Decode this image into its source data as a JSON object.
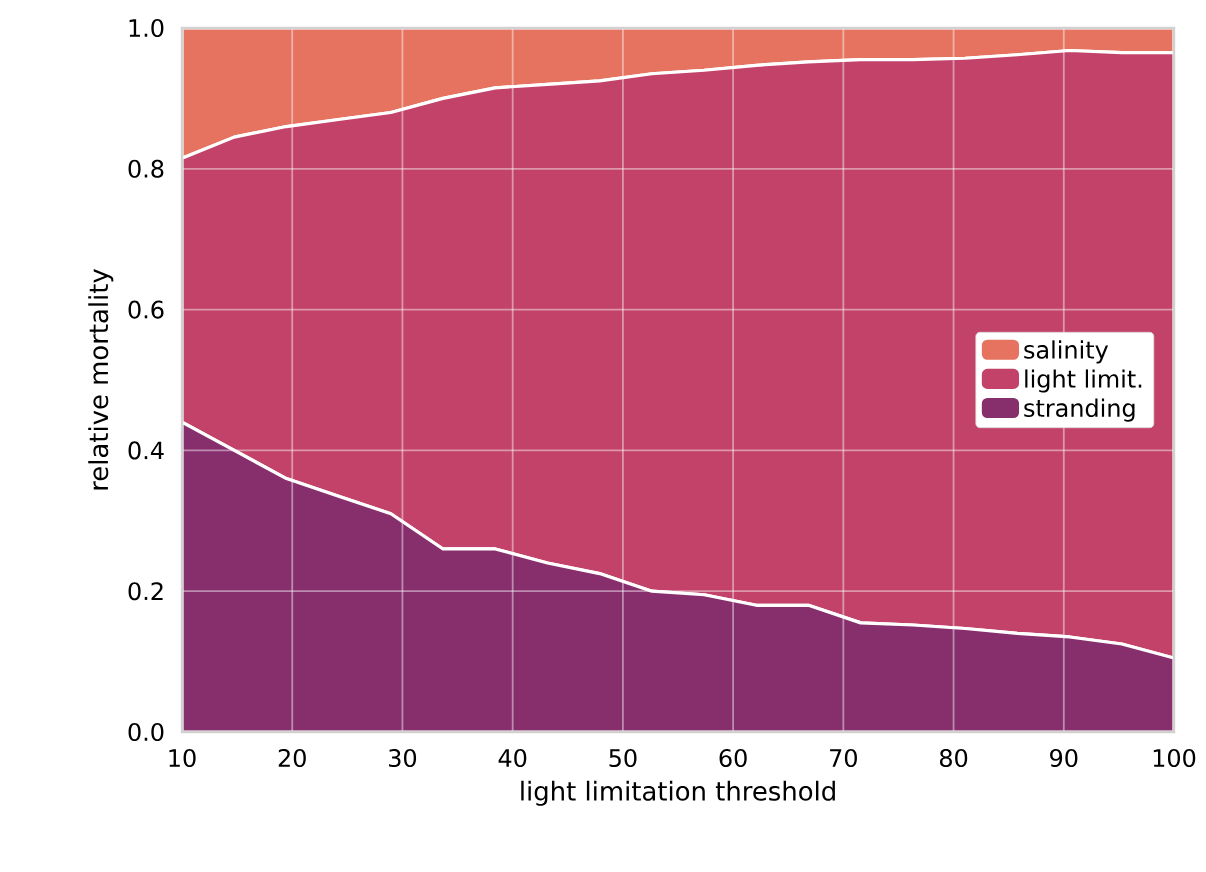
{
  "chart_data": {
    "type": "area",
    "stacked": true,
    "xlabel": "light limitation threshold",
    "ylabel": "relative mortality",
    "x": [
      10,
      14.74,
      19.47,
      24.21,
      28.95,
      33.68,
      38.42,
      43.16,
      47.89,
      52.63,
      57.37,
      62.11,
      66.84,
      71.58,
      76.32,
      81.05,
      85.79,
      90.53,
      95.26,
      100
    ],
    "series": [
      {
        "name": "stranding",
        "color": "#872e6d",
        "values": [
          0.44,
          0.4,
          0.36,
          0.335,
          0.31,
          0.26,
          0.26,
          0.24,
          0.225,
          0.2,
          0.195,
          0.18,
          0.18,
          0.155,
          0.152,
          0.147,
          0.14,
          0.135,
          0.125,
          0.105
        ]
      },
      {
        "name": "light limit.",
        "color": "#c2426a",
        "values": [
          0.375,
          0.445,
          0.5,
          0.535,
          0.57,
          0.64,
          0.655,
          0.68,
          0.7,
          0.735,
          0.745,
          0.767,
          0.772,
          0.8,
          0.803,
          0.81,
          0.822,
          0.833,
          0.84,
          0.86
        ]
      },
      {
        "name": "salinity",
        "color": "#e6735f",
        "values": [
          0.185,
          0.155,
          0.14,
          0.13,
          0.12,
          0.1,
          0.085,
          0.08,
          0.075,
          0.065,
          0.06,
          0.053,
          0.048,
          0.045,
          0.045,
          0.043,
          0.038,
          0.032,
          0.035,
          0.035
        ]
      }
    ],
    "xlim": [
      10,
      100
    ],
    "ylim": [
      0,
      1
    ],
    "xticks": [
      10,
      20,
      30,
      40,
      50,
      60,
      70,
      80,
      90,
      100
    ],
    "yticks": [
      {
        "value": 0,
        "label": "0.0"
      },
      {
        "value": 0.2,
        "label": "0.2"
      },
      {
        "value": 0.4,
        "label": "0.4"
      },
      {
        "value": 0.6,
        "label": "0.6"
      },
      {
        "value": 0.8,
        "label": "0.8"
      },
      {
        "value": 1,
        "label": "1.0"
      }
    ],
    "grid": true,
    "legend": "right"
  }
}
